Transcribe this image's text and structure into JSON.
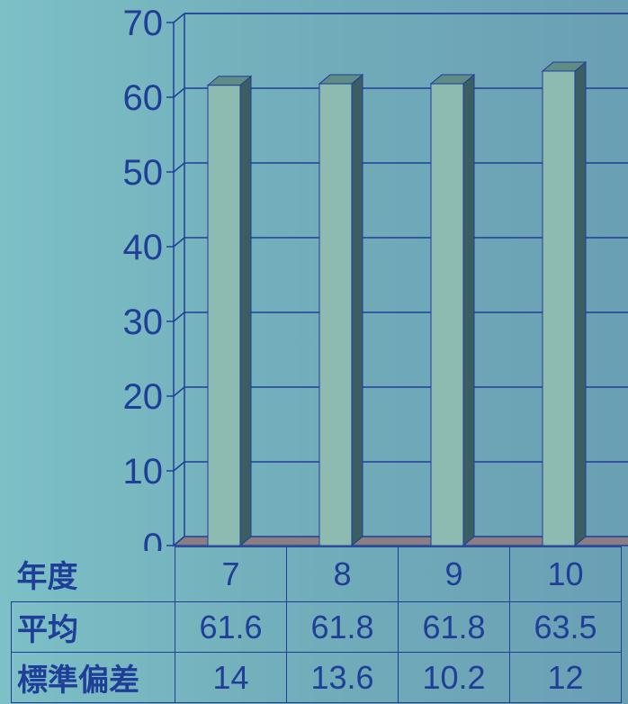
{
  "chart_data": {
    "type": "bar",
    "categories": [
      "7",
      "8",
      "9",
      "10"
    ],
    "series": [
      {
        "values": [
          61.6,
          61.8,
          61.8,
          63.5
        ]
      }
    ],
    "yticks": [
      "0",
      "10",
      "20",
      "30",
      "40",
      "50",
      "60",
      "70"
    ],
    "ylim": [
      0,
      70
    ],
    "grid": true,
    "colors": {
      "bar_face": "#8dbbb2",
      "bar_side": "#3b5e62",
      "bar_top": "#5f8c86",
      "axis": "#1f3e97",
      "floor": "#8c7d82"
    }
  },
  "table": {
    "rows": [
      {
        "label": "年度",
        "values": [
          "7",
          "8",
          "9",
          "10"
        ]
      },
      {
        "label": "平均",
        "values": [
          "61.6",
          "61.8",
          "61.8",
          "63.5"
        ]
      },
      {
        "label": "標準偏差",
        "values": [
          "14",
          "13.6",
          "10.2",
          "12"
        ]
      }
    ]
  }
}
